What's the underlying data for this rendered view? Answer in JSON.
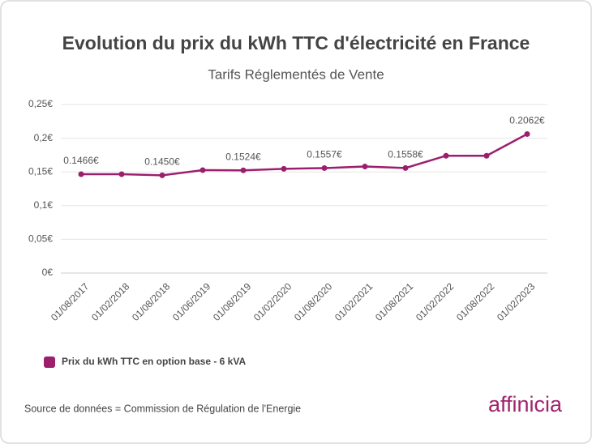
{
  "chart_data": {
    "type": "line",
    "title": "Evolution du prix du kWh TTC d'électricité en France",
    "subtitle": "Tarifs Réglementés de Vente",
    "categories": [
      "01/08/2017",
      "01/02/2018",
      "01/08/2018",
      "01/06/2019",
      "01/08/2019",
      "01/02/2020",
      "01/08/2020",
      "01/02/2021",
      "01/08/2021",
      "01/02/2022",
      "01/08/2022",
      "01/02/2023"
    ],
    "series": [
      {
        "name": "Prix du kWh TTC en option base - 6 kVA",
        "color": "#9c1f6e",
        "values": [
          0.1466,
          0.1466,
          0.145,
          0.1527,
          0.1524,
          0.1546,
          0.1557,
          0.158,
          0.1558,
          0.174,
          0.174,
          0.2062
        ],
        "value_labels": [
          "0.1466€",
          null,
          "0.1450€",
          null,
          "0.1524€",
          null,
          "0.1557€",
          null,
          "0.1558€",
          null,
          null,
          "0.2062€"
        ]
      }
    ],
    "ylim": [
      0,
      0.25
    ],
    "yticks": [
      {
        "value": 0,
        "label": "0€"
      },
      {
        "value": 0.05,
        "label": "0,05€"
      },
      {
        "value": 0.1,
        "label": "0,1€"
      },
      {
        "value": 0.15,
        "label": "0,15€"
      },
      {
        "value": 0.2,
        "label": "0,2€"
      },
      {
        "value": 0.25,
        "label": "0,25€"
      }
    ],
    "grid": true,
    "legend": "bottom-left",
    "source": "Source de données = Commission de Régulation de l'Energie",
    "brand": "affinicia"
  }
}
